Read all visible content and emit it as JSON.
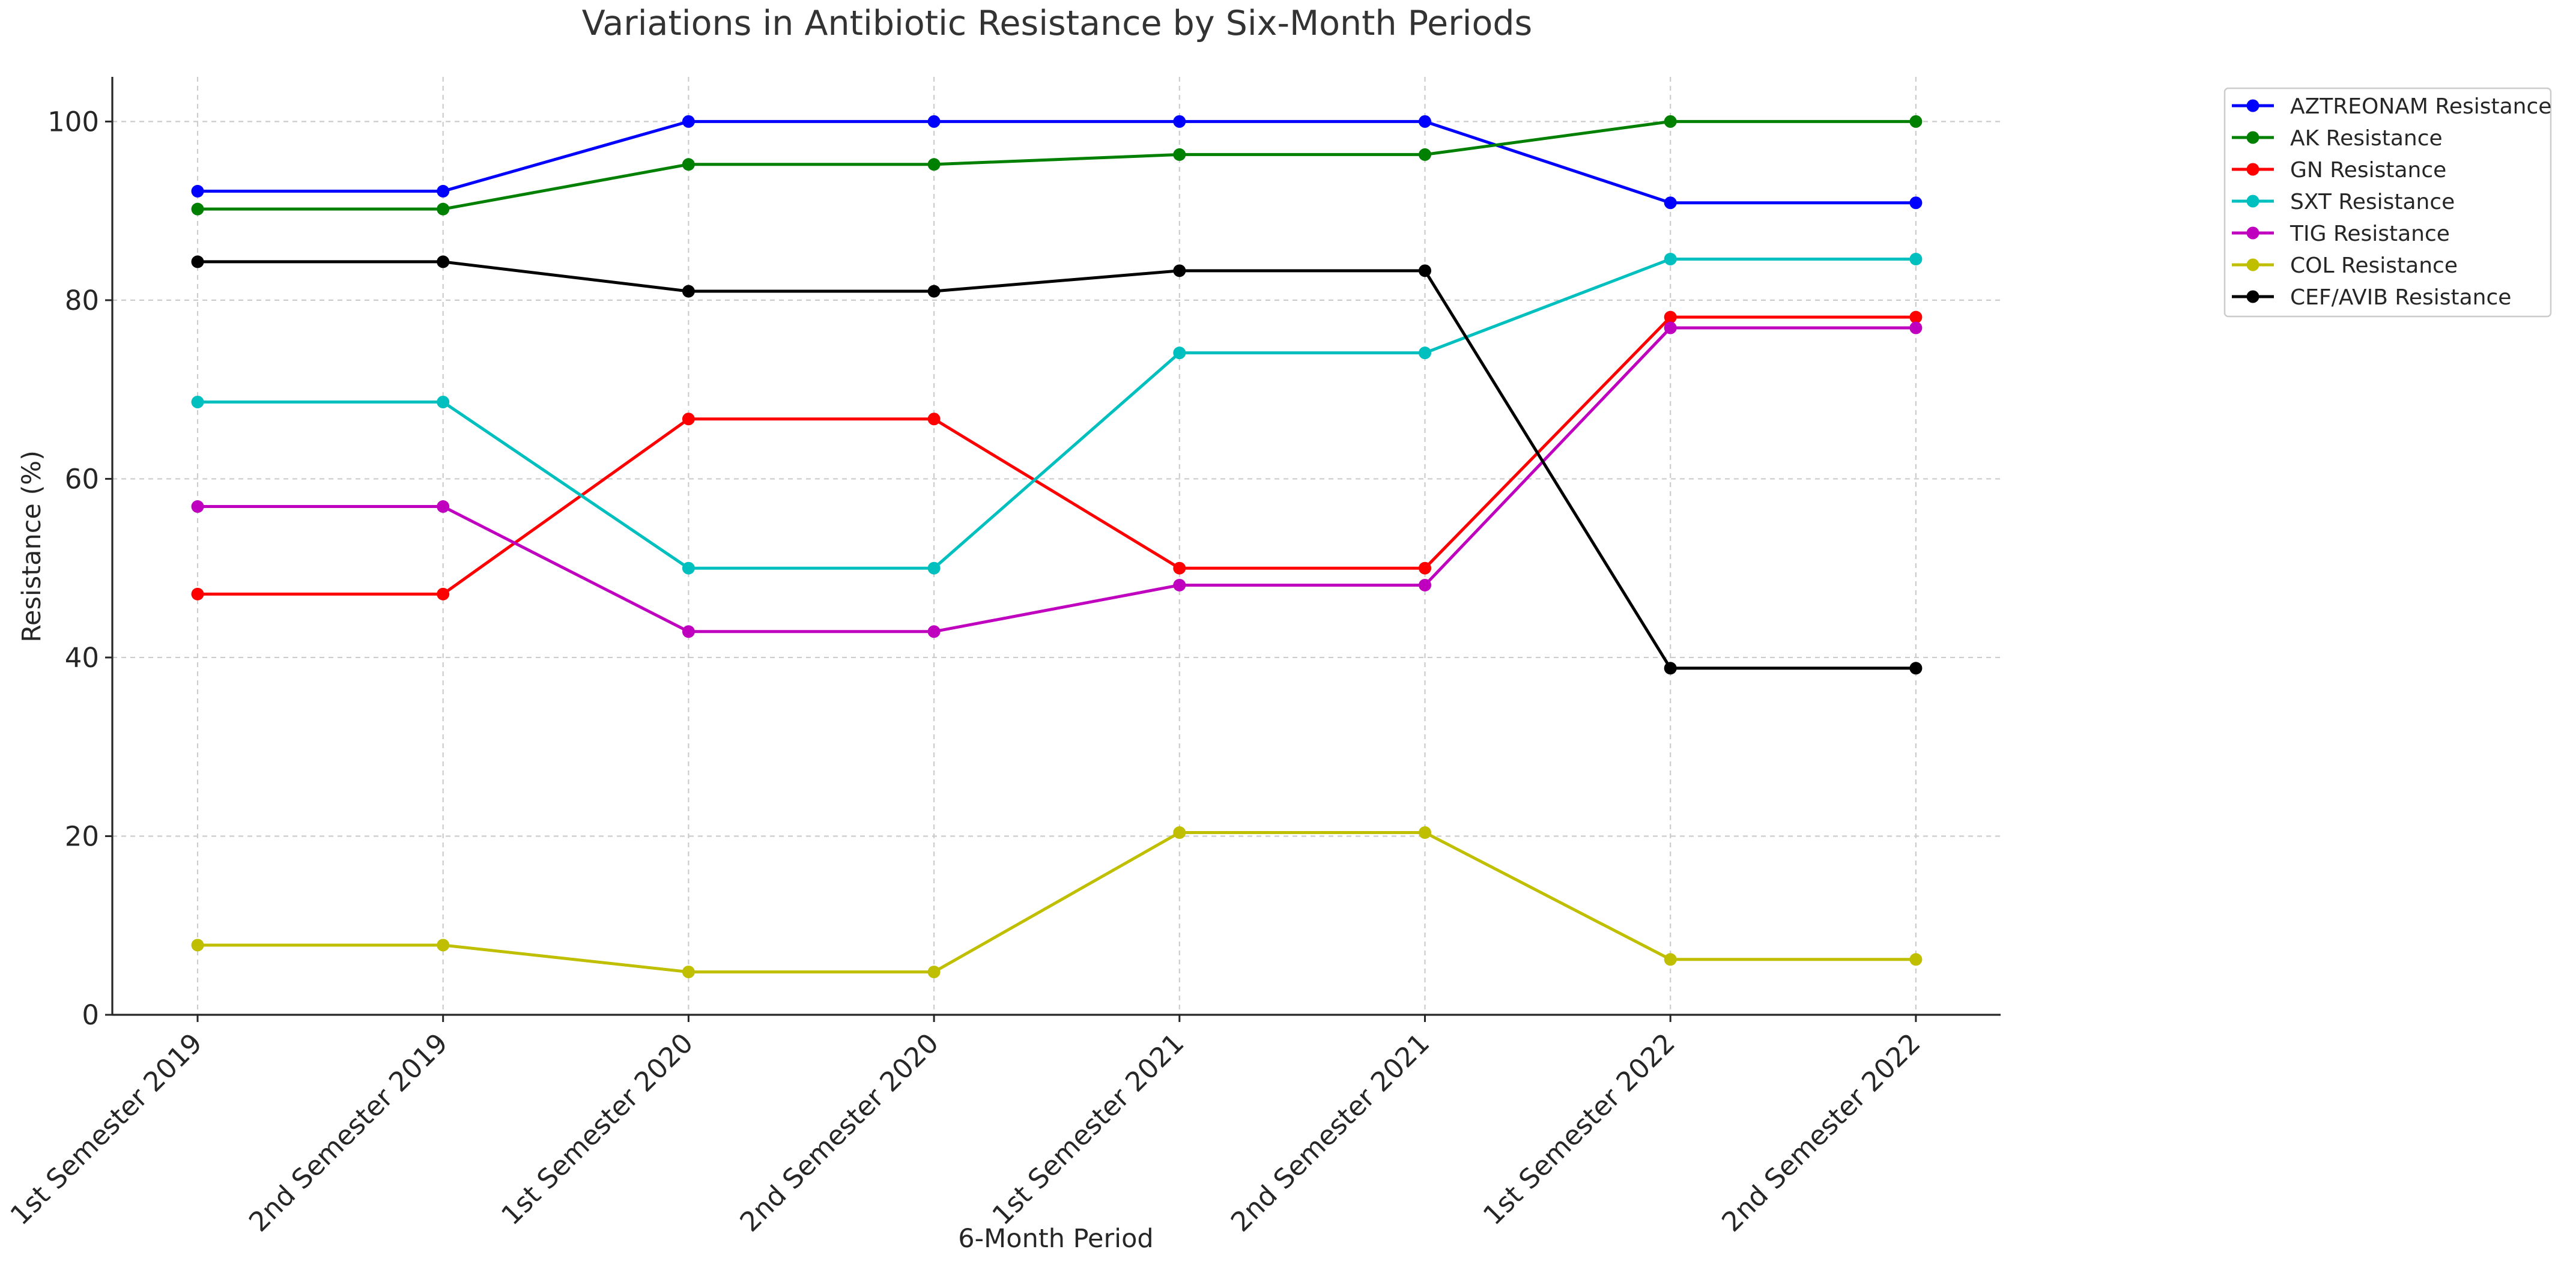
{
  "chart_data": {
    "type": "line",
    "title": "Variations in Antibiotic Resistance by Six-Month Periods",
    "xlabel": "6-Month Period",
    "ylabel": "Resistance (%)",
    "ylim": [
      0,
      105
    ],
    "yticks": [
      0,
      20,
      40,
      60,
      80,
      100
    ],
    "grid": true,
    "legend_position": "outside-top-right",
    "categories": [
      "1st Semester 2019",
      "2nd Semester 2019",
      "1st Semester 2020",
      "2nd Semester 2020",
      "1st Semester 2021",
      "2nd Semester 2021",
      "1st Semester 2022",
      "2nd Semester 2022"
    ],
    "series": [
      {
        "name": "AZTREONAM Resistance",
        "color": "#0000ff",
        "values": [
          92.2,
          92.2,
          100,
          100,
          100,
          100,
          90.9,
          90.9
        ]
      },
      {
        "name": "AK Resistance",
        "color": "#008000",
        "values": [
          90.2,
          90.2,
          95.2,
          95.2,
          96.3,
          96.3,
          100,
          100
        ]
      },
      {
        "name": "GN Resistance",
        "color": "#ff0000",
        "values": [
          47.1,
          47.1,
          66.7,
          66.7,
          50.0,
          50.0,
          78.1,
          78.1
        ]
      },
      {
        "name": "SXT Resistance",
        "color": "#00bfbf",
        "values": [
          68.6,
          68.6,
          50.0,
          50.0,
          74.1,
          74.1,
          84.6,
          84.6
        ]
      },
      {
        "name": "TIG Resistance",
        "color": "#bf00bf",
        "values": [
          56.9,
          56.9,
          42.9,
          42.9,
          48.1,
          48.1,
          76.9,
          76.9
        ]
      },
      {
        "name": "COL Resistance",
        "color": "#bfbf00",
        "values": [
          7.8,
          7.8,
          4.8,
          4.8,
          20.4,
          20.4,
          6.2,
          6.2
        ]
      },
      {
        "name": "CEF/AVIB Resistance",
        "color": "#000000",
        "values": [
          84.3,
          84.3,
          81.0,
          81.0,
          83.3,
          83.3,
          38.8,
          38.8
        ]
      }
    ]
  }
}
